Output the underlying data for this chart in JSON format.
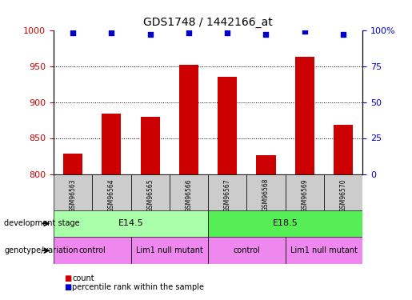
{
  "title": "GDS1748 / 1442166_at",
  "samples": [
    "GSM96563",
    "GSM96564",
    "GSM96565",
    "GSM96566",
    "GSM96567",
    "GSM96568",
    "GSM96569",
    "GSM96570"
  ],
  "counts": [
    828,
    884,
    880,
    952,
    935,
    826,
    963,
    868
  ],
  "percentiles": [
    98,
    98,
    97,
    98,
    98,
    97,
    99,
    97
  ],
  "ylim_left": [
    800,
    1000
  ],
  "ylim_right": [
    0,
    100
  ],
  "yticks_left": [
    800,
    850,
    900,
    950,
    1000
  ],
  "yticks_right": [
    0,
    25,
    50,
    75,
    100
  ],
  "yticks_right_labels": [
    "0",
    "25",
    "50",
    "75",
    "100%"
  ],
  "bar_color": "#cc0000",
  "dot_color": "#0000cc",
  "development_stage_labels": [
    "E14.5",
    "E18.5"
  ],
  "development_stage_ranges": [
    [
      0,
      3
    ],
    [
      4,
      7
    ]
  ],
  "development_stage_colors": [
    "#aaffaa",
    "#55ee55"
  ],
  "genotype_labels": [
    "control",
    "Lim1 null mutant",
    "control",
    "Lim1 null mutant"
  ],
  "genotype_ranges": [
    [
      0,
      1
    ],
    [
      2,
      3
    ],
    [
      4,
      5
    ],
    [
      6,
      7
    ]
  ],
  "genotype_color": "#ee88ee",
  "sample_bg_color": "#cccccc",
  "annotation_row1": "development stage",
  "annotation_row2": "genotype/variation",
  "legend_count": "count",
  "legend_pct": "percentile rank within the sample",
  "grid_ticks": [
    850,
    900,
    950
  ]
}
